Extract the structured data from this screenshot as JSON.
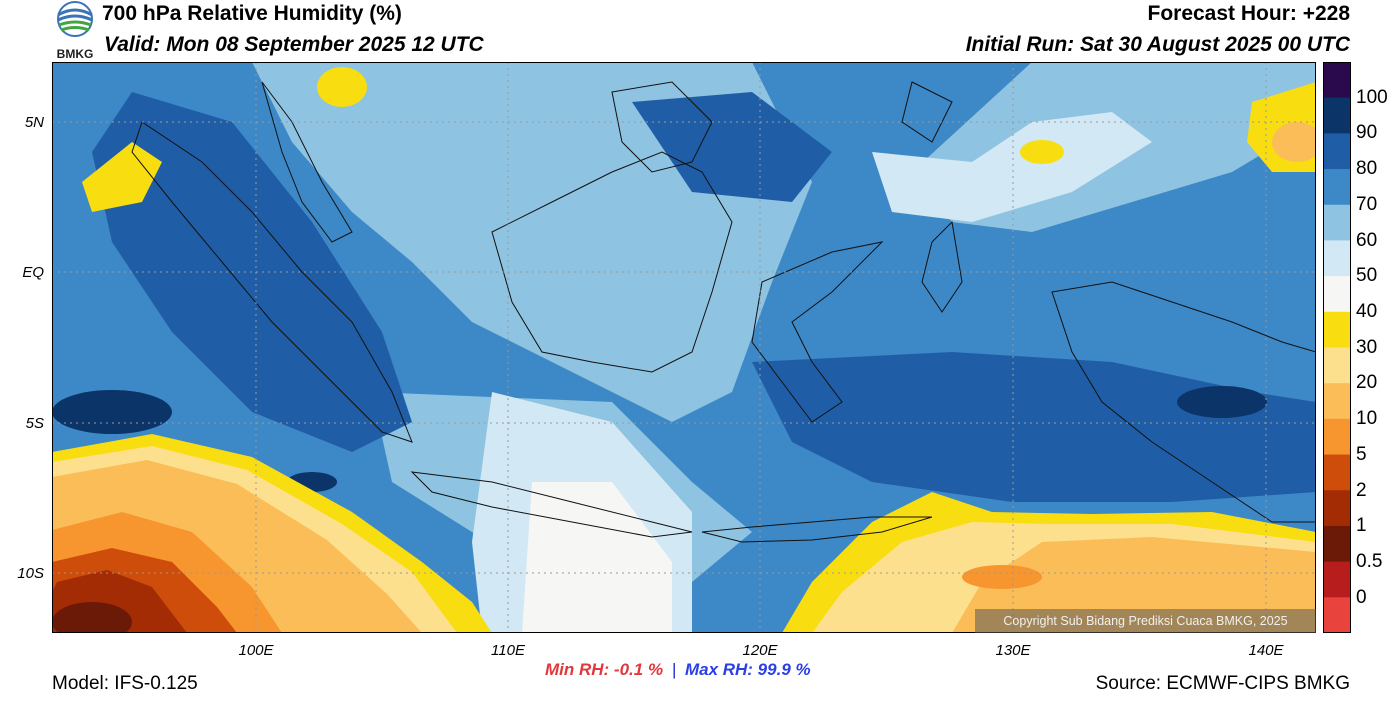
{
  "header": {
    "title": "700 hPa Relative Humidity (%)",
    "valid": "Valid: Mon 08 September 2025 12 UTC",
    "forecast_hour": "Forecast Hour: +228",
    "initial_run": "Initial Run: Sat 30 August 2025 00 UTC",
    "logo_text": "BMKG"
  },
  "axes": {
    "lat_labels": [
      "5N",
      "EQ",
      "5S",
      "10S"
    ],
    "lon_labels": [
      "100E",
      "110E",
      "120E",
      "130E",
      "140E"
    ]
  },
  "colorbar": {
    "labels": [
      "100",
      "90",
      "80",
      "70",
      "60",
      "50",
      "40",
      "30",
      "20",
      "10",
      "5",
      "2",
      "1",
      "0.5",
      "0"
    ],
    "colors": [
      "#2a0a4c",
      "#0b3468",
      "#1f5ea6",
      "#3d88c6",
      "#8ec3e2",
      "#d2e8f4",
      "#f6f6f4",
      "#f8dd10",
      "#fde08e",
      "#fbbd58",
      "#f7962e",
      "#cf4d0a",
      "#a42c04",
      "#6b1a07",
      "#b81d1d",
      "#e8433d"
    ]
  },
  "stats": {
    "min": "Min RH:  -0.1 %",
    "separator": "|",
    "max": "Max RH:  99.9 %"
  },
  "footer": {
    "model": "Model: IFS-0.125",
    "source": "Source: ECMWF-CIPS BMKG",
    "copyright": "Copyright Sub Bidang Prediksi Cuaca BMKG, 2025"
  }
}
